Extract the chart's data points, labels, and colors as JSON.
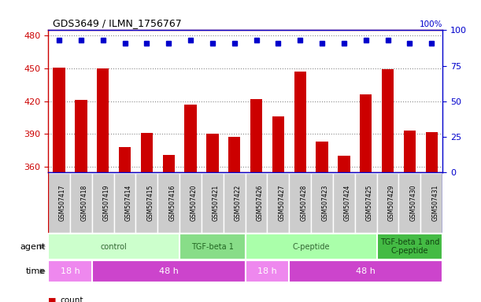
{
  "title": "GDS3649 / ILMN_1756767",
  "samples": [
    "GSM507417",
    "GSM507418",
    "GSM507419",
    "GSM507414",
    "GSM507415",
    "GSM507416",
    "GSM507420",
    "GSM507421",
    "GSM507422",
    "GSM507426",
    "GSM507427",
    "GSM507428",
    "GSM507423",
    "GSM507424",
    "GSM507425",
    "GSM507429",
    "GSM507430",
    "GSM507431"
  ],
  "counts": [
    451,
    421,
    450,
    378,
    391,
    371,
    417,
    390,
    387,
    422,
    406,
    447,
    383,
    370,
    426,
    449,
    393,
    392
  ],
  "percentiles": [
    93,
    93,
    93,
    91,
    91,
    91,
    93,
    91,
    91,
    93,
    91,
    93,
    91,
    91,
    93,
    93,
    91,
    91
  ],
  "ylim_left": [
    355,
    485
  ],
  "ylim_right": [
    0,
    100
  ],
  "yticks_left": [
    360,
    390,
    420,
    450,
    480
  ],
  "yticks_right": [
    0,
    25,
    50,
    75,
    100
  ],
  "bar_color": "#cc0000",
  "dot_color": "#0000cc",
  "plot_bg": "#e8e8e8",
  "agent_groups": [
    {
      "label": "control",
      "start": 0,
      "end": 6,
      "color": "#ccffcc",
      "text_color": "#336633"
    },
    {
      "label": "TGF-beta 1",
      "start": 6,
      "end": 9,
      "color": "#88dd88",
      "text_color": "#226622"
    },
    {
      "label": "C-peptide",
      "start": 9,
      "end": 15,
      "color": "#aaffaa",
      "text_color": "#336633"
    },
    {
      "label": "TGF-beta 1 and\nC-peptide",
      "start": 15,
      "end": 18,
      "color": "#44bb44",
      "text_color": "#114411"
    }
  ],
  "time_groups": [
    {
      "label": "18 h",
      "start": 0,
      "end": 2,
      "color": "#ee88ee"
    },
    {
      "label": "48 h",
      "start": 2,
      "end": 9,
      "color": "#cc44cc"
    },
    {
      "label": "18 h",
      "start": 9,
      "end": 11,
      "color": "#ee88ee"
    },
    {
      "label": "48 h",
      "start": 11,
      "end": 18,
      "color": "#cc44cc"
    }
  ],
  "bg_color": "#ffffff",
  "grid_color": "#888888",
  "left_axis_color": "#cc0000",
  "right_axis_color": "#0000cc",
  "label_bg": "#cccccc"
}
